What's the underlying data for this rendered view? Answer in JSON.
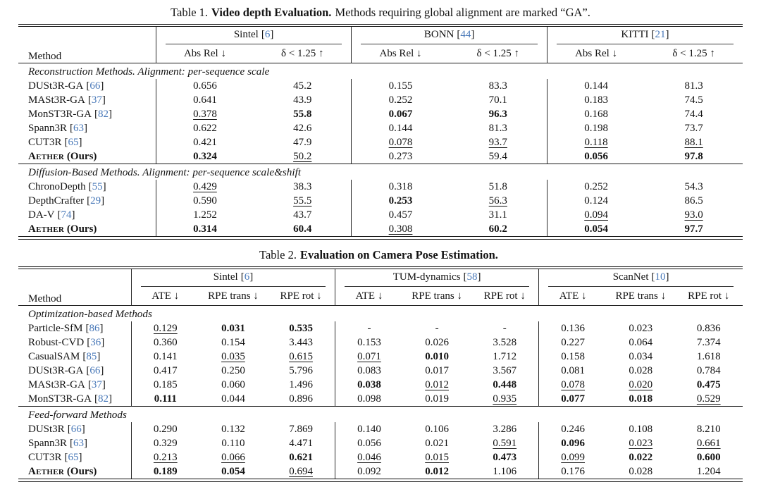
{
  "punct": {
    "cite_open": "[",
    "cite_close": "]"
  },
  "table1": {
    "caption_prefix": "Table 1.",
    "caption_bold": "Video depth Evaluation.",
    "caption_rest": "Methods requiring global alignment are marked “GA”.",
    "method_header": "Method",
    "groups": [
      {
        "name": "Sintel",
        "cite": "6",
        "metrics": [
          "Abs Rel ↓",
          "δ < 1.25 ↑"
        ]
      },
      {
        "name": "BONN",
        "cite": "44",
        "metrics": [
          "Abs Rel ↓",
          "δ < 1.25 ↑"
        ]
      },
      {
        "name": "KITTI",
        "cite": "21",
        "metrics": [
          "Abs Rel ↓",
          "δ < 1.25 ↑"
        ]
      }
    ],
    "sections": [
      {
        "label": "Reconstruction Methods. Alignment: per-sequence scale",
        "rows": [
          {
            "method": {
              "label": "DUSt3R-GA",
              "cite": "66"
            },
            "cells": [
              {
                "v": "0.656"
              },
              {
                "v": "45.2"
              },
              {
                "v": "0.155"
              },
              {
                "v": "83.3"
              },
              {
                "v": "0.144"
              },
              {
                "v": "81.3"
              }
            ]
          },
          {
            "method": {
              "label": "MASt3R-GA",
              "cite": "37"
            },
            "cells": [
              {
                "v": "0.641"
              },
              {
                "v": "43.9"
              },
              {
                "v": "0.252"
              },
              {
                "v": "70.1"
              },
              {
                "v": "0.183"
              },
              {
                "v": "74.5"
              }
            ]
          },
          {
            "method": {
              "label": "MonST3R-GA",
              "cite": "82"
            },
            "cells": [
              {
                "v": "0.378",
                "u": true
              },
              {
                "v": "55.8",
                "b": true
              },
              {
                "v": "0.067",
                "b": true
              },
              {
                "v": "96.3",
                "b": true
              },
              {
                "v": "0.168"
              },
              {
                "v": "74.4"
              }
            ]
          },
          {
            "method": {
              "label": "Spann3R",
              "cite": "63"
            },
            "cells": [
              {
                "v": "0.622"
              },
              {
                "v": "42.6"
              },
              {
                "v": "0.144"
              },
              {
                "v": "81.3"
              },
              {
                "v": "0.198"
              },
              {
                "v": "73.7"
              }
            ]
          },
          {
            "method": {
              "label": "CUT3R",
              "cite": "65"
            },
            "cells": [
              {
                "v": "0.421"
              },
              {
                "v": "47.9"
              },
              {
                "v": "0.078",
                "u": true
              },
              {
                "v": "93.7",
                "u": true
              },
              {
                "v": "0.118",
                "u": true
              },
              {
                "v": "88.1",
                "u": true
              }
            ]
          },
          {
            "method": {
              "label": "Aether",
              "suffix": " (Ours)",
              "sc": true,
              "bold": true
            },
            "cells": [
              {
                "v": "0.324",
                "b": true
              },
              {
                "v": "50.2",
                "u": true
              },
              {
                "v": "0.273"
              },
              {
                "v": "59.4"
              },
              {
                "v": "0.056",
                "b": true
              },
              {
                "v": "97.8",
                "b": true
              }
            ]
          }
        ]
      },
      {
        "label": "Diffusion-Based Methods. Alignment: per-sequence scale&shift",
        "rows": [
          {
            "method": {
              "label": "ChronoDepth",
              "cite": "55"
            },
            "cells": [
              {
                "v": "0.429",
                "u": true
              },
              {
                "v": "38.3"
              },
              {
                "v": "0.318"
              },
              {
                "v": "51.8"
              },
              {
                "v": "0.252"
              },
              {
                "v": "54.3"
              }
            ]
          },
          {
            "method": {
              "label": "DepthCrafter",
              "cite": "29"
            },
            "cells": [
              {
                "v": "0.590"
              },
              {
                "v": "55.5",
                "u": true
              },
              {
                "v": "0.253",
                "b": true
              },
              {
                "v": "56.3",
                "u": true
              },
              {
                "v": "0.124"
              },
              {
                "v": "86.5"
              }
            ]
          },
          {
            "method": {
              "label": "DA-V",
              "cite": "74"
            },
            "cells": [
              {
                "v": "1.252"
              },
              {
                "v": "43.7"
              },
              {
                "v": "0.457"
              },
              {
                "v": "31.1"
              },
              {
                "v": "0.094",
                "u": true
              },
              {
                "v": "93.0",
                "u": true
              }
            ]
          },
          {
            "method": {
              "label": "Aether",
              "suffix": " (Ours)",
              "sc": true,
              "bold": true
            },
            "cells": [
              {
                "v": "0.314",
                "b": true
              },
              {
                "v": "60.4",
                "b": true
              },
              {
                "v": "0.308",
                "u": true
              },
              {
                "v": "60.2",
                "b": true
              },
              {
                "v": "0.054",
                "b": true
              },
              {
                "v": "97.7",
                "b": true
              }
            ]
          }
        ]
      }
    ]
  },
  "table2": {
    "caption_prefix": "Table 2.",
    "caption_bold": "Evaluation on Camera Pose Estimation.",
    "caption_rest": "",
    "method_header": "Method",
    "groups": [
      {
        "name": "Sintel",
        "cite": "6",
        "metrics": [
          "ATE ↓",
          "RPE trans ↓",
          "RPE rot ↓"
        ]
      },
      {
        "name": "TUM-dynamics",
        "cite": "58",
        "metrics": [
          "ATE ↓",
          "RPE trans ↓",
          "RPE rot ↓"
        ]
      },
      {
        "name": "ScanNet",
        "cite": "10",
        "metrics": [
          "ATE ↓",
          "RPE trans ↓",
          "RPE rot ↓"
        ]
      }
    ],
    "sections": [
      {
        "label": "Optimization-based Methods",
        "rows": [
          {
            "method": {
              "label": "Particle-SfM",
              "cite": "86"
            },
            "cells": [
              {
                "v": "0.129",
                "u": true
              },
              {
                "v": "0.031",
                "b": true
              },
              {
                "v": "0.535",
                "b": true
              },
              {
                "v": "-"
              },
              {
                "v": "-"
              },
              {
                "v": "-"
              },
              {
                "v": "0.136"
              },
              {
                "v": "0.023"
              },
              {
                "v": "0.836"
              }
            ]
          },
          {
            "method": {
              "label": "Robust-CVD",
              "cite": "36"
            },
            "cells": [
              {
                "v": "0.360"
              },
              {
                "v": "0.154"
              },
              {
                "v": "3.443"
              },
              {
                "v": "0.153"
              },
              {
                "v": "0.026"
              },
              {
                "v": "3.528"
              },
              {
                "v": "0.227"
              },
              {
                "v": "0.064"
              },
              {
                "v": "7.374"
              }
            ]
          },
          {
            "method": {
              "label": "CasualSAM",
              "cite": "85"
            },
            "cells": [
              {
                "v": "0.141"
              },
              {
                "v": "0.035",
                "u": true
              },
              {
                "v": "0.615",
                "u": true
              },
              {
                "v": "0.071",
                "u": true
              },
              {
                "v": "0.010",
                "b": true
              },
              {
                "v": "1.712"
              },
              {
                "v": "0.158"
              },
              {
                "v": "0.034"
              },
              {
                "v": "1.618"
              }
            ]
          },
          {
            "method": {
              "label": "DUSt3R-GA",
              "cite": "66"
            },
            "cells": [
              {
                "v": "0.417"
              },
              {
                "v": "0.250"
              },
              {
                "v": "5.796"
              },
              {
                "v": "0.083"
              },
              {
                "v": "0.017"
              },
              {
                "v": "3.567"
              },
              {
                "v": "0.081"
              },
              {
                "v": "0.028"
              },
              {
                "v": "0.784"
              }
            ]
          },
          {
            "method": {
              "label": "MASt3R-GA",
              "cite": "37"
            },
            "cells": [
              {
                "v": "0.185"
              },
              {
                "v": "0.060"
              },
              {
                "v": "1.496"
              },
              {
                "v": "0.038",
                "b": true
              },
              {
                "v": "0.012",
                "u": true
              },
              {
                "v": "0.448",
                "b": true
              },
              {
                "v": "0.078",
                "u": true
              },
              {
                "v": "0.020",
                "u": true
              },
              {
                "v": "0.475",
                "b": true
              }
            ]
          },
          {
            "method": {
              "label": "MonST3R-GA",
              "cite": "82"
            },
            "cells": [
              {
                "v": "0.111",
                "b": true
              },
              {
                "v": "0.044"
              },
              {
                "v": "0.896"
              },
              {
                "v": "0.098"
              },
              {
                "v": "0.019"
              },
              {
                "v": "0.935",
                "u": true
              },
              {
                "v": "0.077",
                "b": true
              },
              {
                "v": "0.018",
                "b": true
              },
              {
                "v": "0.529",
                "u": true
              }
            ]
          }
        ]
      },
      {
        "label": "Feed-forward Methods",
        "rows": [
          {
            "method": {
              "label": "DUSt3R",
              "cite": "66"
            },
            "cells": [
              {
                "v": "0.290"
              },
              {
                "v": "0.132"
              },
              {
                "v": "7.869"
              },
              {
                "v": "0.140"
              },
              {
                "v": "0.106"
              },
              {
                "v": "3.286"
              },
              {
                "v": "0.246"
              },
              {
                "v": "0.108"
              },
              {
                "v": "8.210"
              }
            ]
          },
          {
            "method": {
              "label": "Spann3R",
              "cite": "63"
            },
            "cells": [
              {
                "v": "0.329"
              },
              {
                "v": "0.110"
              },
              {
                "v": "4.471"
              },
              {
                "v": "0.056"
              },
              {
                "v": "0.021"
              },
              {
                "v": "0.591",
                "u": true
              },
              {
                "v": "0.096",
                "b": true
              },
              {
                "v": "0.023",
                "u": true
              },
              {
                "v": "0.661",
                "u": true
              }
            ]
          },
          {
            "method": {
              "label": "CUT3R",
              "cite": "65"
            },
            "cells": [
              {
                "v": "0.213",
                "u": true
              },
              {
                "v": "0.066",
                "u": true
              },
              {
                "v": "0.621",
                "b": true
              },
              {
                "v": "0.046",
                "u": true
              },
              {
                "v": "0.015",
                "u": true
              },
              {
                "v": "0.473",
                "b": true
              },
              {
                "v": "0.099",
                "u": true
              },
              {
                "v": "0.022",
                "b": true
              },
              {
                "v": "0.600",
                "b": true
              }
            ]
          },
          {
            "method": {
              "label": "Aether",
              "suffix": " (Ours)",
              "sc": true,
              "bold": true
            },
            "cells": [
              {
                "v": "0.189",
                "b": true
              },
              {
                "v": "0.054",
                "b": true
              },
              {
                "v": "0.694",
                "u": true
              },
              {
                "v": "0.092"
              },
              {
                "v": "0.012",
                "b": true
              },
              {
                "v": "1.106"
              },
              {
                "v": "0.176"
              },
              {
                "v": "0.028"
              },
              {
                "v": "1.204"
              }
            ]
          }
        ]
      }
    ]
  }
}
